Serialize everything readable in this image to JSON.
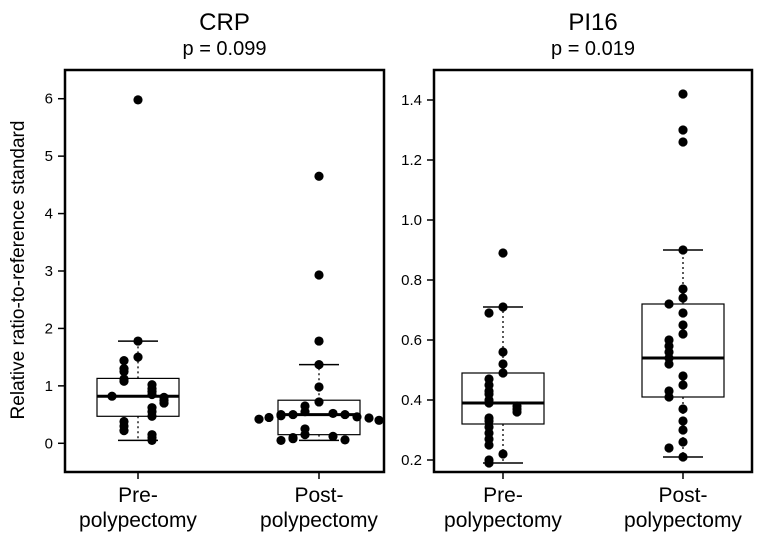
{
  "ylabel": "Relative ratio-to-reference standard",
  "chart_data": [
    {
      "type": "box",
      "title": "CRP",
      "subtitle": "p = 0.099",
      "ylabel": "Relative ratio-to-reference standard",
      "ylim": [
        -0.5,
        6.5
      ],
      "yticks": [
        0,
        1,
        2,
        3,
        4,
        5,
        6
      ],
      "categories": [
        [
          "Pre-",
          "polypectomy"
        ],
        [
          "Post-",
          "polypectomy"
        ]
      ],
      "groups": [
        {
          "name": "Pre-polypectomy",
          "whisker_low": 0.05,
          "q1": 0.47,
          "median": 0.82,
          "q3": 1.13,
          "whisker_high": 1.78,
          "points": [
            5.98,
            1.78,
            1.5,
            1.44,
            1.3,
            1.25,
            1.12,
            1.08,
            1.02,
            0.95,
            0.9,
            0.85,
            0.82,
            0.8,
            0.75,
            0.7,
            0.62,
            0.55,
            0.47,
            0.38,
            0.3,
            0.22,
            0.15,
            0.1,
            0.05
          ]
        },
        {
          "name": "Post-polypectomy",
          "whisker_low": 0.05,
          "q1": 0.15,
          "median": 0.5,
          "q3": 0.75,
          "whisker_high": 1.37,
          "points": [
            4.65,
            2.93,
            1.78,
            1.37,
            0.98,
            0.72,
            0.65,
            0.55,
            0.52,
            0.5,
            0.5,
            0.5,
            0.48,
            0.46,
            0.45,
            0.44,
            0.42,
            0.4,
            0.25,
            0.15,
            0.12,
            0.1,
            0.08,
            0.06,
            0.05
          ]
        }
      ]
    },
    {
      "type": "box",
      "title": "PI16",
      "subtitle": "p = 0.019",
      "ylim": [
        0.16,
        1.5
      ],
      "yticks": [
        0.2,
        0.4,
        0.6,
        0.8,
        1.0,
        1.2,
        1.4
      ],
      "ytick_labels": [
        "0.2",
        "0.4",
        "0.6",
        "0.8",
        "1.0",
        "1.2",
        "1.4"
      ],
      "categories": [
        [
          "Pre-",
          "polypectomy"
        ],
        [
          "Post-",
          "polypectomy"
        ]
      ],
      "groups": [
        {
          "name": "Pre-polypectomy",
          "whisker_low": 0.19,
          "q1": 0.32,
          "median": 0.39,
          "q3": 0.49,
          "whisker_high": 0.71,
          "points": [
            0.89,
            0.71,
            0.69,
            0.56,
            0.52,
            0.49,
            0.47,
            0.45,
            0.43,
            0.42,
            0.4,
            0.39,
            0.38,
            0.37,
            0.36,
            0.34,
            0.33,
            0.31,
            0.29,
            0.27,
            0.25,
            0.22,
            0.2,
            0.19
          ]
        },
        {
          "name": "Post-polypectomy",
          "whisker_low": 0.21,
          "q1": 0.41,
          "median": 0.54,
          "q3": 0.72,
          "whisker_high": 0.9,
          "points": [
            1.42,
            1.3,
            1.26,
            0.9,
            0.77,
            0.74,
            0.72,
            0.69,
            0.65,
            0.62,
            0.6,
            0.58,
            0.56,
            0.54,
            0.52,
            0.48,
            0.45,
            0.43,
            0.41,
            0.37,
            0.33,
            0.3,
            0.26,
            0.24,
            0.21
          ]
        }
      ]
    }
  ]
}
